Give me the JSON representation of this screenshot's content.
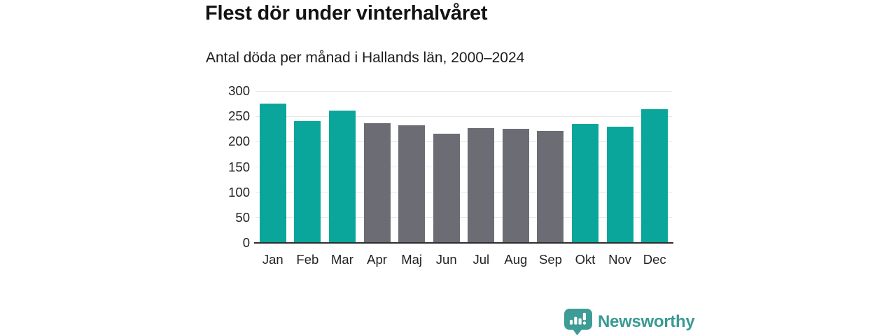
{
  "chart_data": {
    "type": "bar",
    "title": "Flest dör under vinterhalvåret",
    "subtitle": "Antal döda per månad i Hallands län, 2000–2024",
    "categories": [
      "Jan",
      "Feb",
      "Mar",
      "Apr",
      "Maj",
      "Jun",
      "Jul",
      "Aug",
      "Sep",
      "Okt",
      "Nov",
      "Dec"
    ],
    "values": [
      275,
      240,
      262,
      237,
      232,
      216,
      227,
      226,
      221,
      235,
      230,
      264
    ],
    "bar_colors": [
      "#0aa69b",
      "#0aa69b",
      "#0aa69b",
      "#6c6c74",
      "#6c6c74",
      "#6c6c74",
      "#6c6c74",
      "#6c6c74",
      "#6c6c74",
      "#0aa69b",
      "#0aa69b",
      "#0aa69b"
    ],
    "xlabel": "",
    "ylabel": "",
    "ylim": [
      0,
      300
    ],
    "yticks": [
      0,
      50,
      100,
      150,
      200,
      250,
      300
    ],
    "grid": true,
    "legend_position": "none"
  },
  "branding": {
    "logo_text": "Newsworthy"
  },
  "colors": {
    "winter_bar": "#0aa69b",
    "summer_bar": "#6c6c74",
    "brand_teal": "#399a93",
    "brand_icon_teal": "#3d9c95",
    "gridline": "#e7e7e7",
    "axis_line": "#2e2e2e",
    "title_text": "#131313",
    "label_text": "#222222"
  }
}
